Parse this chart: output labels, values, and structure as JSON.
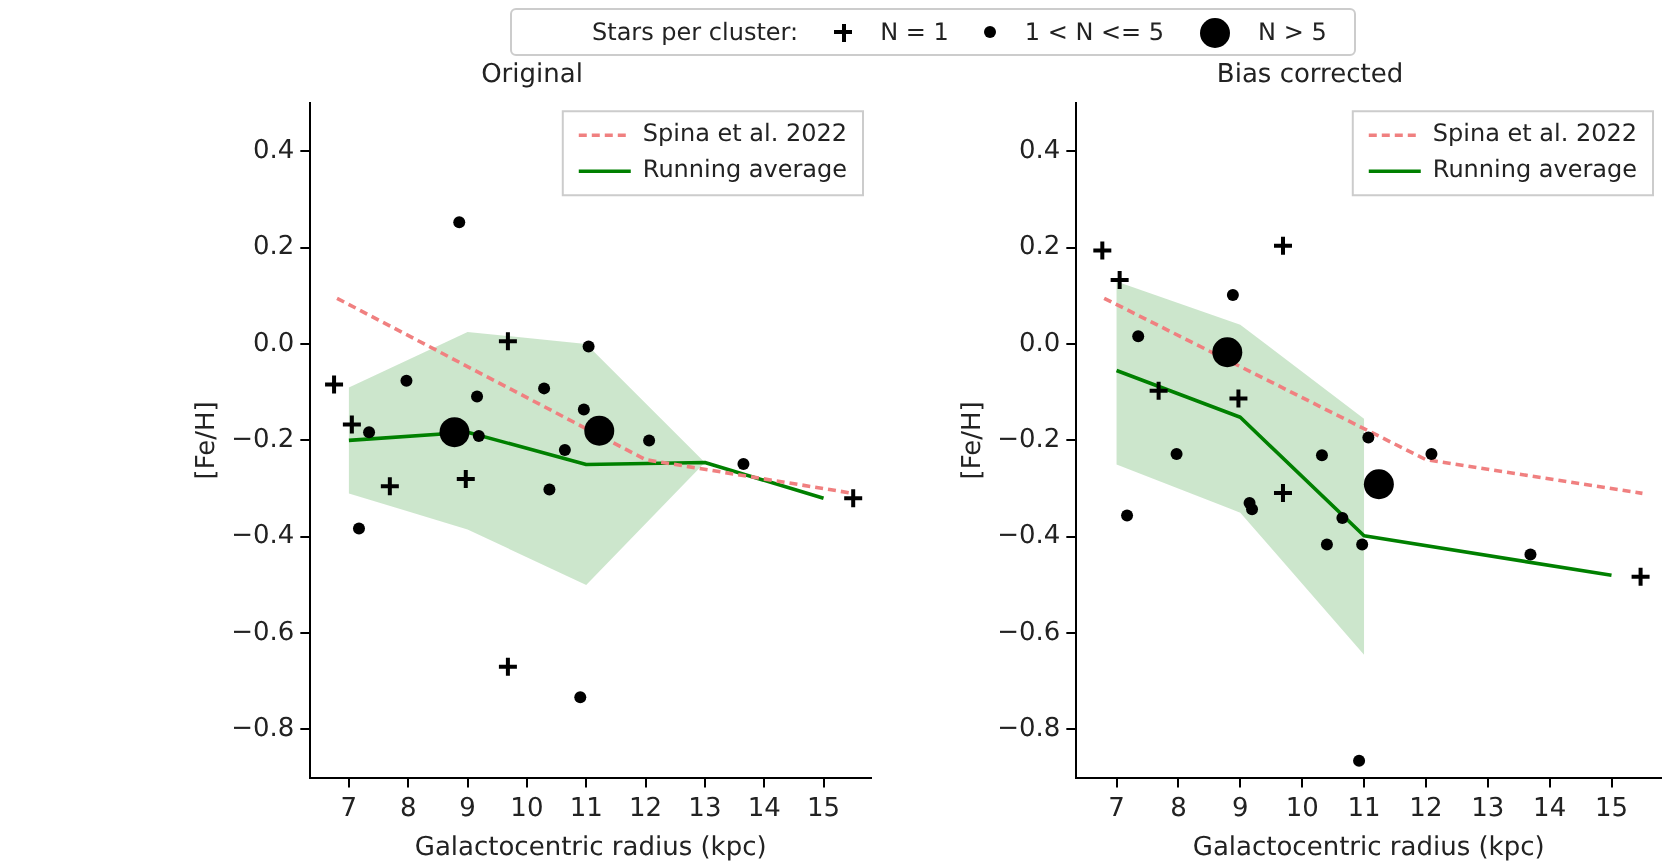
{
  "chart_data": [
    {
      "type": "scatter",
      "title": "Original",
      "xlabel": "Galactocentric radius (kpc)",
      "ylabel": "[Fe/H]",
      "legend_title": "Stars per cluster:",
      "xlim": [
        6.35,
        15.8
      ],
      "ylim": [
        -0.9,
        0.5
      ],
      "xticks": [
        7,
        8,
        9,
        10,
        11,
        12,
        13,
        14,
        15
      ],
      "yticks": [
        {
          "value": -0.8,
          "label": "−0.8"
        },
        {
          "value": -0.6,
          "label": "−0.6"
        },
        {
          "value": -0.4,
          "label": "−0.4"
        },
        {
          "value": -0.2,
          "label": "−0.2"
        },
        {
          "value": 0,
          "label": "0.0"
        },
        {
          "value": 0.2,
          "label": "0.2"
        },
        {
          "value": 0.4,
          "label": "0.4"
        }
      ],
      "grid": false,
      "legend": "top right",
      "series": [
        {
          "name": "N = 1",
          "type": "scatter",
          "marker": "cross",
          "color": "#000000",
          "x": [
            6.75,
            7.05,
            7.69,
            9.68,
            8.97,
            9.68,
            15.5
          ],
          "values": [
            -0.084,
            -0.167,
            -0.295,
            0.006,
            -0.28,
            -0.67,
            -0.32
          ]
        },
        {
          "name": "1 < N <= 5",
          "type": "scatter",
          "marker": "circle",
          "color": "#000000",
          "x": [
            8.86,
            7.17,
            7.34,
            7.97,
            9.16,
            9.19,
            10.29,
            10.38,
            10.64,
            10.96,
            11.04,
            12.06,
            13.65,
            10.9
          ],
          "values": [
            0.253,
            -0.383,
            -0.183,
            -0.076,
            -0.109,
            -0.191,
            -0.092,
            -0.302,
            -0.22,
            -0.136,
            -0.005,
            -0.2,
            -0.249,
            -0.733
          ]
        },
        {
          "name": "N > 5",
          "type": "scatter",
          "marker": "circle",
          "color": "#000000",
          "x": [
            8.78,
            11.22
          ],
          "values": [
            -0.183,
            -0.18
          ]
        },
        {
          "name": "Spina et al. 2022",
          "type": "line",
          "line_style": "dashed",
          "color": "#f08080",
          "x": [
            6.8,
            12,
            15.5
          ],
          "values": [
            0.095,
            -0.24,
            -0.31
          ]
        },
        {
          "name": "Running average",
          "type": "line",
          "line_style": "solid",
          "color": "#008000",
          "x": [
            7,
            9,
            11,
            13,
            15
          ],
          "values": [
            -0.2,
            -0.183,
            -0.25,
            -0.246,
            -0.32
          ],
          "lower": [
            -0.31,
            -0.385,
            -0.5,
            -0.246,
            null
          ],
          "upper": [
            -0.09,
            0.025,
            0.0,
            -0.246,
            null
          ]
        }
      ]
    },
    {
      "type": "scatter",
      "title": "Bias corrected",
      "xlabel": "Galactocentric radius (kpc)",
      "ylabel": "[Fe/H]",
      "xlim": [
        6.35,
        15.8
      ],
      "ylim": [
        -0.9,
        0.5
      ],
      "xticks": [
        7,
        8,
        9,
        10,
        11,
        12,
        13,
        14,
        15
      ],
      "yticks": [
        {
          "value": -0.8,
          "label": "−0.8"
        },
        {
          "value": -0.6,
          "label": "−0.6"
        },
        {
          "value": -0.4,
          "label": "−0.4"
        },
        {
          "value": -0.2,
          "label": "−0.2"
        },
        {
          "value": 0,
          "label": "0.0"
        },
        {
          "value": 0.2,
          "label": "0.2"
        },
        {
          "value": 0.4,
          "label": "0.4"
        }
      ],
      "grid": false,
      "legend": "top right",
      "series": [
        {
          "type": "scatter",
          "marker": "cross",
          "color": "#000000",
          "x": [
            6.77,
            7.05,
            7.68,
            8.97,
            9.69,
            9.69,
            15.47
          ],
          "values": [
            0.194,
            0.133,
            -0.097,
            -0.113,
            0.204,
            -0.309,
            -0.483
          ]
        },
        {
          "type": "scatter",
          "marker": "circle",
          "color": "#000000",
          "x": [
            8.88,
            7.35,
            7.97,
            7.17,
            9.15,
            9.19,
            10.32,
            10.4,
            10.65,
            10.97,
            11.07,
            12.09,
            13.69,
            10.92
          ],
          "values": [
            0.102,
            0.016,
            -0.228,
            -0.356,
            -0.33,
            -0.343,
            -0.231,
            -0.416,
            -0.361,
            -0.416,
            -0.194,
            -0.228,
            -0.437,
            -0.865
          ]
        },
        {
          "type": "scatter",
          "marker": "circle",
          "color": "#000000",
          "x": [
            8.79,
            11.24
          ],
          "values": [
            -0.017,
            -0.291
          ]
        },
        {
          "name": "Spina et al. 2022",
          "type": "line",
          "line_style": "dashed",
          "color": "#f08080",
          "x": [
            6.8,
            12,
            15.5
          ],
          "values": [
            0.095,
            -0.24,
            -0.31
          ]
        },
        {
          "name": "Running average",
          "type": "line",
          "line_style": "solid",
          "color": "#008000",
          "x": [
            7,
            9,
            11,
            15
          ],
          "values": [
            -0.055,
            -0.152,
            -0.398,
            -0.48
          ],
          "lower": [
            -0.25,
            -0.35,
            -0.645,
            null
          ],
          "upper": [
            0.13,
            0.04,
            -0.155,
            null
          ]
        }
      ]
    }
  ]
}
